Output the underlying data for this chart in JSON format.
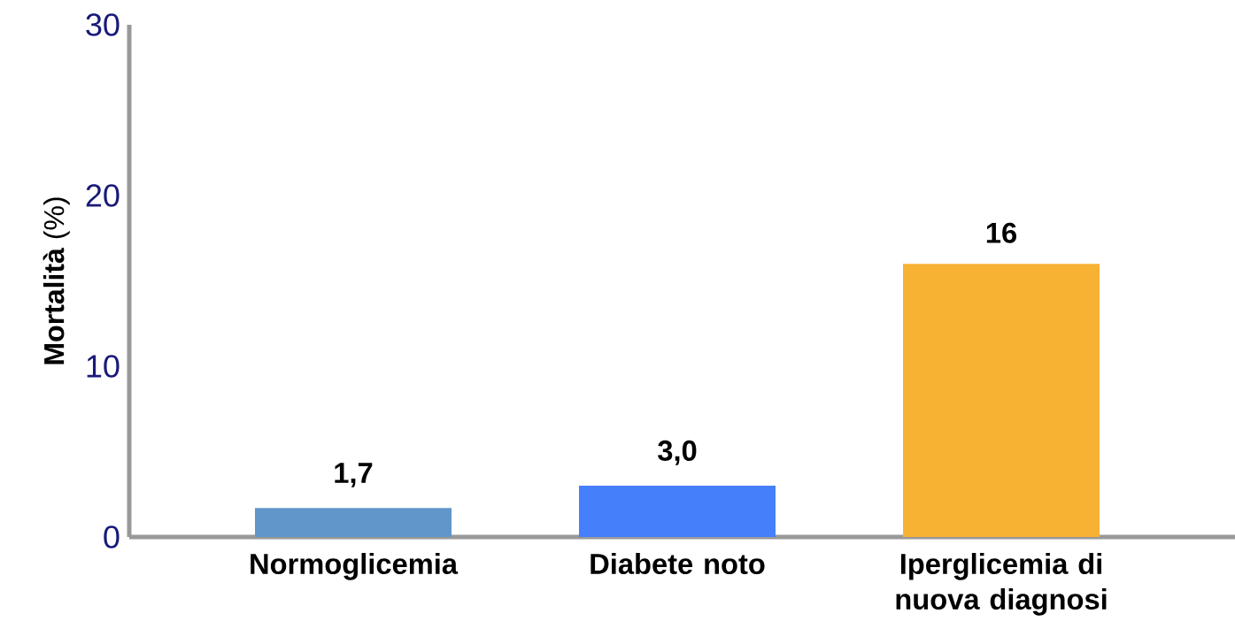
{
  "chart_data": {
    "type": "bar",
    "ylabel": "**Mortalità** (%)",
    "categories": [
      "Normoglicemia",
      "Diabete noto",
      "Iperglicemia di nuova diagnosi"
    ],
    "values": [
      1.7,
      3.0,
      16
    ],
    "value_labels": [
      "1,7",
      "3,0",
      "16"
    ],
    "colors": [
      "#6096c9",
      "#4580fa",
      "#f7b234"
    ],
    "ylim": [
      0,
      30
    ],
    "yticks": [
      0,
      10,
      20,
      30
    ]
  }
}
